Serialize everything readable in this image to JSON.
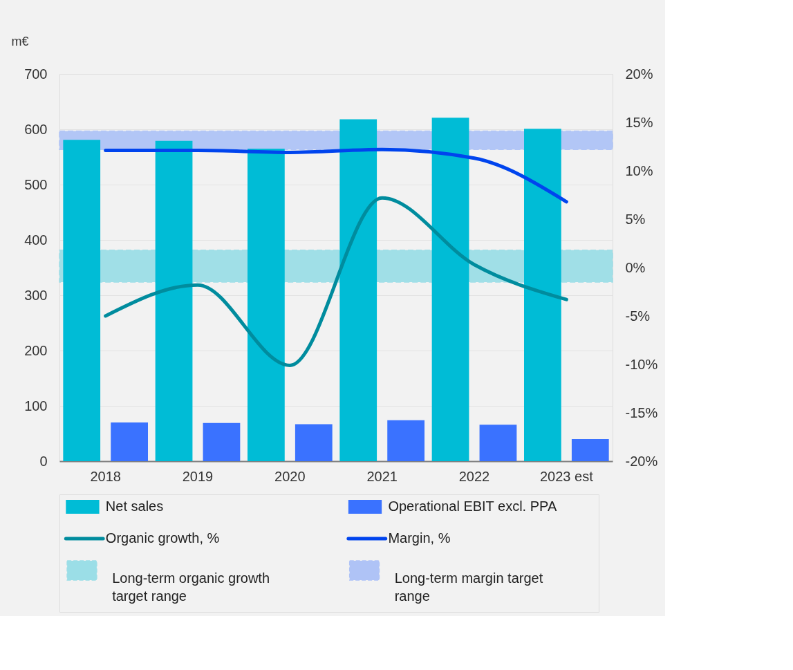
{
  "chart_data": {
    "type": "bar",
    "ylabel": "m€",
    "categories": [
      "2018",
      "2019",
      "2020",
      "2021",
      "2022",
      "2023 est"
    ],
    "series": [
      {
        "name": "Net sales",
        "color": "#00bcd6",
        "values": [
          581,
          579,
          565,
          618,
          621,
          601
        ]
      },
      {
        "name": "Operational EBIT excl. PPA",
        "color": "#3a72ff",
        "values": [
          70,
          69,
          67,
          74,
          66,
          40
        ]
      },
      {
        "name": "Organic growth, %",
        "type": "line",
        "axis": "y2",
        "color": "#008c9e",
        "values": [
          -5.0,
          -1.8,
          -10.1,
          7.2,
          0.3,
          -3.3
        ]
      },
      {
        "name": "Margin, %",
        "type": "line",
        "axis": "y2",
        "color": "#0044ee",
        "values": [
          12.1,
          12.1,
          11.9,
          12.2,
          11.3,
          6.8
        ]
      }
    ],
    "bands": [
      {
        "axis": "y2",
        "from": -1.5,
        "to": 1.8,
        "label": "Long-term organic growth target range",
        "color": "#92dce6"
      },
      {
        "axis": "y2",
        "from": 12.2,
        "to": 14.1,
        "label": "Long-term margin target range",
        "color": "#a8bff7"
      }
    ],
    "ylim": [
      0,
      700
    ],
    "yticks": [
      0,
      100,
      200,
      300,
      400,
      500,
      600,
      700
    ],
    "y2lim": [
      -20,
      20
    ],
    "y2ticks": [
      {
        "value": -20,
        "label": "-20%"
      },
      {
        "value": -15,
        "label": "-15%"
      },
      {
        "value": -10,
        "label": "-10%"
      },
      {
        "value": -5,
        "label": "-5%"
      },
      {
        "value": 0,
        "label": "0%"
      },
      {
        "value": 5,
        "label": "5%"
      },
      {
        "value": 10,
        "label": "10%"
      },
      {
        "value": 15,
        "label": "15%"
      },
      {
        "value": 20,
        "label": "20%"
      }
    ],
    "grid": "y",
    "legend": "bottom"
  }
}
